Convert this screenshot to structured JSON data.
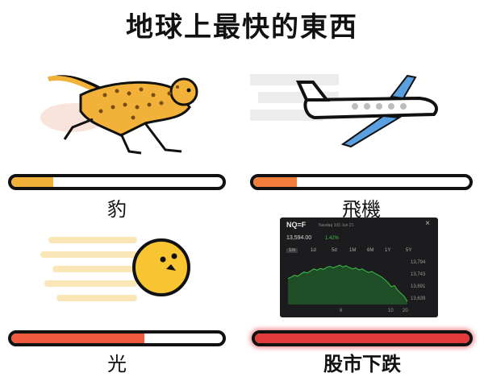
{
  "title": "地球上最快的東西",
  "panels": [
    {
      "label": "豹",
      "fill": 0.2,
      "fill_color": "#f2b23a",
      "icon": "cheetah-icon"
    },
    {
      "label": "飛機",
      "fill": 0.2,
      "fill_color": "#f07d3a",
      "icon": "airplane-icon"
    },
    {
      "label": "光",
      "fill": 0.63,
      "fill_color": "#ee5a3e",
      "icon": "light-ball-icon"
    },
    {
      "label": "股市下跌",
      "fill": 1.0,
      "fill_color": "#e23a3a",
      "icon": "stock-chart-icon"
    }
  ],
  "stock_widget": {
    "symbol": "NQ=F",
    "subtitle": "Nasdaq 100 Jun 21",
    "price": "13,594.00",
    "change": "1.42%",
    "close_glyph": "×",
    "tabs": [
      "1m",
      "1d",
      "5d",
      "1M",
      "6M",
      "1Y",
      "5Y"
    ],
    "y_ticks": [
      "13,794",
      "13,743",
      "13,691",
      "13,639"
    ],
    "x_ticks": [
      "6",
      "10",
      "20"
    ]
  },
  "chart_data": {
    "type": "line",
    "title": "NQ=F",
    "subtitle": "Nasdaq 100 Jun 21",
    "xlabel": "",
    "ylabel": "",
    "x_ticks": [
      "6",
      "10",
      "20"
    ],
    "y_ticks": [
      13794,
      13743,
      13691,
      13639
    ],
    "ylim": [
      13620,
      13810
    ],
    "series": [
      {
        "values": [
          13722,
          13728,
          13735,
          13731,
          13740,
          13748,
          13744,
          13752,
          13760,
          13755,
          13762,
          13758,
          13766,
          13770,
          13764,
          13769,
          13775,
          13768,
          13772,
          13766,
          13760,
          13764,
          13756,
          13760,
          13752,
          13746,
          13750,
          13742,
          13736,
          13728,
          13718,
          13706,
          13690,
          13694,
          13676,
          13664,
          13652,
          13632
        ]
      }
    ],
    "grid": false
  }
}
